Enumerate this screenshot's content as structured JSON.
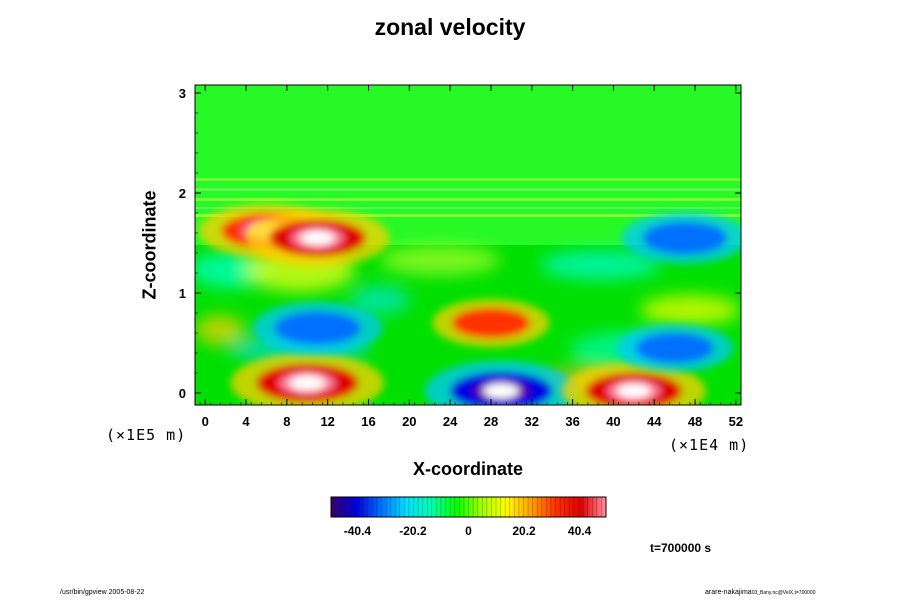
{
  "chart_data": {
    "type": "heatmap",
    "title": "zonal velocity",
    "xlabel": "X-coordinate",
    "ylabel": "Z-coordinate",
    "x_multiplier": "(×1E4 m)",
    "z_multiplier": "(×1E5 m)",
    "xlim": [
      -1,
      52.5
    ],
    "ylim": [
      -0.12,
      3.08
    ],
    "x_ticks": [
      0,
      4,
      8,
      12,
      16,
      20,
      24,
      28,
      32,
      36,
      40,
      44,
      48,
      52
    ],
    "y_ticks": [
      0,
      1,
      2,
      3
    ],
    "colorbar": {
      "range": [
        -50,
        50
      ],
      "tick_values": [
        -40.4,
        -20.2,
        0,
        20.2,
        40.4
      ],
      "tick_labels": [
        "-40.4",
        "-20.2",
        "0",
        "20.2",
        "40.4"
      ],
      "colors": [
        "#3a006a",
        "#0000e0",
        "#0070ff",
        "#00e0ff",
        "#00ffb0",
        "#00ff00",
        "#a0ff00",
        "#ffff00",
        "#ffa000",
        "#ff3000",
        "#e00000",
        "#ff90a0"
      ]
    },
    "features": [
      {
        "x": 10,
        "z": 0.1,
        "value": 55
      },
      {
        "x": 29,
        "z": 0.02,
        "value": -55
      },
      {
        "x": 42,
        "z": 0.02,
        "value": 50
      },
      {
        "x": 6,
        "z": 1.62,
        "value": 45
      },
      {
        "x": 11,
        "z": 1.55,
        "value": 50
      },
      {
        "x": 11,
        "z": 0.65,
        "value": -42
      },
      {
        "x": 28,
        "z": 0.7,
        "value": 35
      },
      {
        "x": 47,
        "z": 1.55,
        "value": -40
      },
      {
        "x": 46,
        "z": 0.45,
        "value": -35
      }
    ]
  },
  "timestamp": "t=700000 s",
  "footer_left": "/usr/bin/gpview 2005-08-22",
  "footer_right_main": "arare-nakajima",
  "footer_right_sub": "03_Bany.nc@VelX,t=700000"
}
